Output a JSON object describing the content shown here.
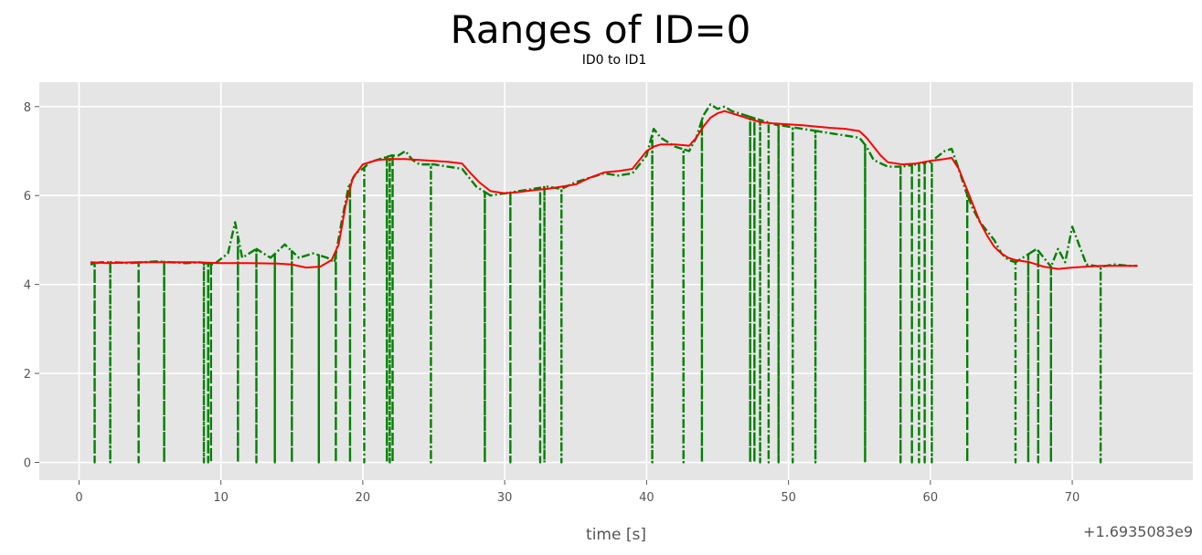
{
  "chart_data": {
    "type": "line",
    "title": "Ranges of ID=0",
    "subtitle": "ID0 to ID1",
    "xlabel": "time [s]",
    "ylabel": "",
    "x_offset_label": "+1.6935083e9",
    "xlim": [
      -2.8,
      78.5
    ],
    "ylim": [
      -0.4,
      8.55
    ],
    "x_ticks": [
      0,
      10,
      20,
      30,
      40,
      50,
      60,
      70
    ],
    "x_tick_labels": [
      "0",
      "10",
      "20",
      "30",
      "40",
      "50",
      "60",
      "70"
    ],
    "y_ticks": [
      0,
      2,
      4,
      6,
      8
    ],
    "y_tick_labels": [
      "0",
      "2",
      "4",
      "6",
      "8"
    ],
    "grid": true,
    "background": "#e5e5e5",
    "series": [
      {
        "style": "dash-dot",
        "color": "#008000",
        "x": [
          0.8,
          1.5,
          2.5,
          3.5,
          4.5,
          5.5,
          6.5,
          7.5,
          8.5,
          9.5,
          10.5,
          11.0,
          11.5,
          12.5,
          13.5,
          14.5,
          15.5,
          16.5,
          17.5,
          18.0,
          18.5,
          19.0,
          19.5,
          20.0,
          20.5,
          21.0,
          21.5,
          22.0,
          22.5,
          23.0,
          23.5,
          24.0,
          25.0,
          26.0,
          27.0,
          27.5,
          28.0,
          28.5,
          29.0,
          30.0,
          31.0,
          32.0,
          33.0,
          34.0,
          35.0,
          36.0,
          37.0,
          38.0,
          39.0,
          40.0,
          40.5,
          41.0,
          42.0,
          43.0,
          43.5,
          44.0,
          44.5,
          45.0,
          45.5,
          46.0,
          47.0,
          48.0,
          49.0,
          50.0,
          51.0,
          52.0,
          53.0,
          54.0,
          55.0,
          55.5,
          56.0,
          57.0,
          58.0,
          59.0,
          60.0,
          61.0,
          61.5,
          62.0,
          62.5,
          63.0,
          63.5,
          64.0,
          64.5,
          65.0,
          65.5,
          66.0,
          67.0,
          67.5,
          68.0,
          68.5,
          69.0,
          69.5,
          70.0,
          71.0,
          72.0,
          73.0,
          74.0,
          74.6
        ],
        "y": [
          4.45,
          4.5,
          4.5,
          4.48,
          4.5,
          4.52,
          4.5,
          4.48,
          4.5,
          4.45,
          4.7,
          5.4,
          4.6,
          4.8,
          4.6,
          4.9,
          4.6,
          4.7,
          4.6,
          4.5,
          5.4,
          6.2,
          6.5,
          6.6,
          6.75,
          6.8,
          6.85,
          6.9,
          6.9,
          7.0,
          6.8,
          6.7,
          6.7,
          6.65,
          6.6,
          6.4,
          6.2,
          6.1,
          6.0,
          6.05,
          6.1,
          6.15,
          6.2,
          6.15,
          6.3,
          6.4,
          6.5,
          6.45,
          6.5,
          6.9,
          7.5,
          7.3,
          7.1,
          7.0,
          7.3,
          7.8,
          8.05,
          7.95,
          8.0,
          7.9,
          7.8,
          7.7,
          7.6,
          7.55,
          7.5,
          7.45,
          7.4,
          7.35,
          7.3,
          7.1,
          6.8,
          6.65,
          6.65,
          6.7,
          6.75,
          7.0,
          7.05,
          6.6,
          6.1,
          5.7,
          5.4,
          5.2,
          5.0,
          4.7,
          4.55,
          4.5,
          4.7,
          4.8,
          4.6,
          4.4,
          4.8,
          4.5,
          5.3,
          4.45,
          4.4,
          4.45,
          4.42,
          4.42
        ],
        "drops": [
          1.1,
          2.2,
          4.2,
          6.0,
          8.8,
          9.1,
          9.3,
          11.2,
          12.5,
          13.8,
          15.0,
          16.9,
          18.1,
          19.1,
          20.1,
          21.7,
          21.9,
          22.1,
          24.8,
          28.6,
          30.4,
          32.5,
          32.8,
          34.0,
          40.4,
          42.6,
          43.9,
          47.3,
          47.6,
          48.0,
          48.6,
          49.3,
          50.3,
          51.9,
          55.4,
          57.9,
          58.7,
          59.2,
          59.6,
          60.1,
          62.6,
          66.0,
          66.9,
          67.6,
          68.5,
          72.0
        ]
      },
      {
        "style": "solid",
        "color": "#ff0000",
        "x": [
          0.8,
          2.0,
          4.0,
          6.0,
          8.0,
          10.0,
          12.0,
          14.0,
          15.0,
          16.0,
          17.0,
          17.8,
          18.3,
          18.8,
          19.3,
          20.0,
          21.0,
          22.0,
          23.0,
          24.0,
          25.0,
          26.0,
          27.0,
          27.6,
          28.2,
          29.0,
          30.0,
          31.0,
          32.0,
          33.0,
          34.0,
          35.0,
          36.0,
          37.0,
          38.0,
          39.0,
          40.0,
          40.5,
          41.0,
          42.0,
          43.0,
          43.5,
          44.0,
          44.5,
          45.0,
          45.5,
          46.0,
          47.0,
          48.0,
          49.0,
          50.0,
          51.0,
          52.0,
          53.0,
          54.0,
          55.0,
          55.5,
          56.0,
          56.5,
          57.0,
          58.0,
          59.0,
          60.0,
          61.0,
          61.5,
          62.0,
          62.5,
          63.0,
          63.5,
          64.0,
          64.5,
          65.0,
          65.5,
          66.0,
          67.0,
          68.0,
          69.0,
          70.0,
          71.0,
          72.0,
          73.0,
          74.0,
          74.6
        ],
        "y": [
          4.5,
          4.48,
          4.5,
          4.5,
          4.5,
          4.48,
          4.48,
          4.47,
          4.45,
          4.38,
          4.4,
          4.55,
          4.9,
          5.8,
          6.4,
          6.7,
          6.8,
          6.82,
          6.82,
          6.8,
          6.78,
          6.76,
          6.72,
          6.5,
          6.3,
          6.1,
          6.05,
          6.08,
          6.12,
          6.15,
          6.2,
          6.25,
          6.4,
          6.52,
          6.55,
          6.6,
          7.0,
          7.1,
          7.15,
          7.15,
          7.12,
          7.3,
          7.55,
          7.75,
          7.85,
          7.9,
          7.85,
          7.75,
          7.65,
          7.62,
          7.6,
          7.58,
          7.55,
          7.52,
          7.5,
          7.45,
          7.3,
          7.1,
          6.9,
          6.75,
          6.7,
          6.72,
          6.78,
          6.82,
          6.85,
          6.6,
          6.2,
          5.8,
          5.4,
          5.1,
          4.85,
          4.7,
          4.6,
          4.55,
          4.5,
          4.4,
          4.35,
          4.38,
          4.4,
          4.42,
          4.42,
          4.42,
          4.42
        ]
      }
    ]
  }
}
